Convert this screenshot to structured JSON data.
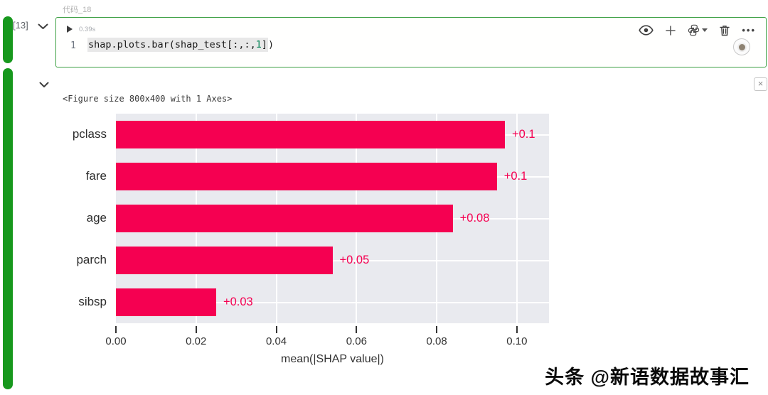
{
  "cell": {
    "title": "代码_18",
    "execution_count": "[13]",
    "run_duration": "0.39s",
    "line_number": "1",
    "code": {
      "pre": "shap.plots.bar(shap_test[:,:,",
      "num": "1",
      "bracket": "]",
      "paren": ")"
    },
    "toolbar_icons": [
      "eye-icon",
      "plus-icon",
      "python-language-icon",
      "trash-icon",
      "more-ellipsis-icon"
    ]
  },
  "output": {
    "figure_text": "<Figure size 800x400 with 1 Axes>",
    "close_label": "×"
  },
  "chart_data": {
    "type": "bar",
    "orientation": "horizontal",
    "title": "",
    "categories": [
      "pclass",
      "fare",
      "age",
      "parch",
      "sibsp"
    ],
    "values": [
      0.097,
      0.095,
      0.084,
      0.054,
      0.025
    ],
    "bar_labels": [
      "+0.1",
      "+0.1",
      "+0.08",
      "+0.05",
      "+0.03"
    ],
    "xlabel": "mean(|SHAP value|)",
    "xticks": [
      0.0,
      0.02,
      0.04,
      0.06,
      0.08,
      0.1
    ],
    "xtick_labels": [
      "0.00",
      "0.02",
      "0.04",
      "0.06",
      "0.08",
      "0.10"
    ],
    "xlim": [
      0,
      0.108
    ],
    "grid": true,
    "legend": false,
    "bar_color": "#f50051",
    "label_color": "#f50051",
    "plot_bg": "#e9eaef"
  },
  "watermark": "头条 @新语数据故事汇",
  "colors": {
    "gutter_green": "#17981d",
    "cell_border_green": "#3da044",
    "code_number_token": "#098658"
  }
}
